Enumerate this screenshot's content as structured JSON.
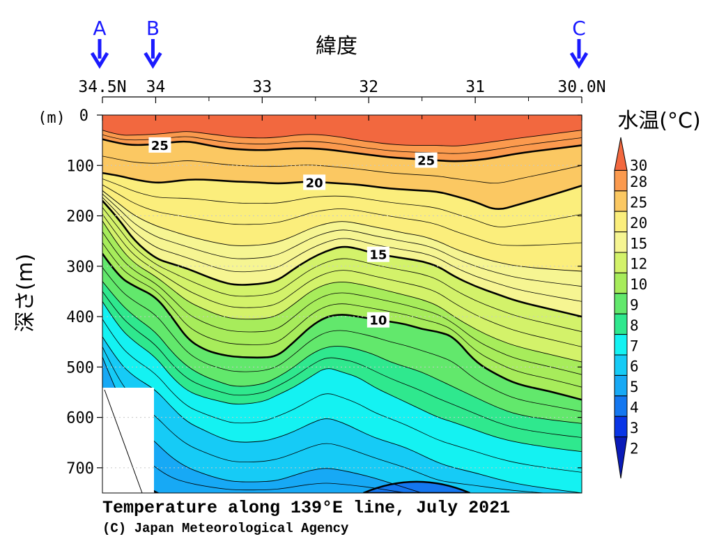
{
  "chart_data": {
    "type": "heatmap",
    "title": "Temperature along 139°E line, July 2021",
    "credit": "(C) Japan Meteorological Agency",
    "x_axis": {
      "label": "緯度",
      "direction": "reversed",
      "range": [
        34.5,
        30.0
      ],
      "ticks": [
        {
          "value": 34.5,
          "label": "34.5N"
        },
        {
          "value": 34,
          "label": "34"
        },
        {
          "value": 33,
          "label": "33"
        },
        {
          "value": 32,
          "label": "32"
        },
        {
          "value": 31,
          "label": "31"
        },
        {
          "value": 30,
          "label": "30.0N"
        }
      ],
      "minor_ticks": [
        33.5,
        32.5,
        31.5,
        30.5
      ]
    },
    "y_axis": {
      "label": "深さ(m)",
      "unit": "(m)",
      "range": [
        0,
        750
      ],
      "inverted": true,
      "ticks": [
        0,
        100,
        200,
        300,
        400,
        500,
        600,
        700
      ]
    },
    "markers": [
      {
        "label": "A",
        "x": 34.5,
        "color": "#1a1aff"
      },
      {
        "label": "B",
        "x": 34.0,
        "color": "#1a1aff"
      },
      {
        "label": "C",
        "x": 30.0,
        "color": "#1a1aff"
      }
    ],
    "colorbar": {
      "title": "水温(°C)",
      "levels": [
        "30",
        "28",
        "25",
        "20",
        "15",
        "12",
        "10",
        "9",
        "8",
        "7",
        "6",
        "5",
        "4",
        "3",
        "2"
      ],
      "colors": [
        "#f2683f",
        "#fb9a4e",
        "#fbc862",
        "#fbee7c",
        "#f6f592",
        "#d3f26a",
        "#a7ec5b",
        "#62e86c",
        "#2fe88e",
        "#14f2f2",
        "#16cbf6",
        "#17a9f5",
        "#1477f0",
        "#0935e6",
        "#0a1bb8"
      ]
    },
    "isotherms": [
      {
        "value": 25,
        "depths": [
          48,
          56,
          60,
          58,
          54,
          52,
          58,
          64,
          68,
          70,
          68,
          66,
          66,
          68,
          72,
          76,
          80,
          84,
          86,
          88,
          90,
          92,
          90,
          84,
          76,
          68,
          60
        ],
        "label_positions": [
          34.0,
          31.5
        ]
      },
      {
        "value": 20,
        "depths": [
          115,
          120,
          128,
          135,
          132,
          128,
          128,
          130,
          132,
          134,
          136,
          134,
          132,
          134,
          136,
          138,
          142,
          146,
          148,
          150,
          152,
          160,
          172,
          190,
          178,
          160,
          140
        ],
        "label_positions": [
          32.5
        ]
      },
      {
        "value": 15,
        "depths": [
          170,
          205,
          250,
          285,
          295,
          305,
          318,
          330,
          338,
          335,
          328,
          305,
          285,
          270,
          260,
          265,
          275,
          280,
          285,
          290,
          300,
          320,
          340,
          355,
          370,
          385,
          400
        ],
        "label_positions": [
          32.0
        ]
      },
      {
        "value": 10,
        "depths": [
          275,
          320,
          340,
          360,
          400,
          445,
          465,
          475,
          480,
          482,
          478,
          450,
          420,
          400,
          395,
          400,
          405,
          410,
          415,
          425,
          430,
          440,
          490,
          515,
          535,
          548,
          565
        ],
        "label_positions": [
          32.0
        ]
      },
      {
        "value": 5,
        "depths": [
          690,
          700,
          720,
          750,
          760,
          760,
          760,
          760,
          760,
          760,
          760,
          760,
          760,
          760,
          760,
          760,
          760,
          760,
          760,
          760,
          760,
          760,
          760,
          760,
          760,
          760,
          760
        ],
        "label_positions": []
      }
    ],
    "depth_bands": [
      {
        "color": "#f2683f",
        "top": [
          0,
          0,
          0,
          0,
          0,
          0,
          0,
          0,
          0,
          0,
          0,
          0,
          0,
          0,
          0,
          0,
          0,
          0,
          0,
          0,
          0,
          0,
          0,
          0,
          0,
          0,
          0
        ]
      },
      {
        "color": "#fb9a4e",
        "top": [
          30,
          40,
          40,
          38,
          35,
          32,
          36,
          40,
          44,
          46,
          44,
          40,
          38,
          40,
          44,
          50,
          54,
          58,
          60,
          60,
          60,
          62,
          58,
          52,
          46,
          38,
          30
        ]
      },
      {
        "color": "#fbc862",
        "top": [
          48,
          56,
          60,
          58,
          54,
          52,
          58,
          64,
          68,
          70,
          68,
          66,
          66,
          68,
          72,
          76,
          80,
          84,
          86,
          88,
          90,
          92,
          90,
          84,
          76,
          68,
          60
        ]
      },
      {
        "color": "#fbee7c",
        "top": [
          115,
          120,
          128,
          135,
          132,
          128,
          128,
          130,
          132,
          134,
          136,
          134,
          132,
          134,
          136,
          138,
          142,
          146,
          148,
          150,
          152,
          160,
          172,
          190,
          178,
          160,
          140
        ]
      },
      {
        "color": "#f6f592",
        "top": [
          150,
          175,
          200,
          220,
          230,
          240,
          248,
          255,
          260,
          258,
          252,
          240,
          225,
          215,
          210,
          215,
          222,
          228,
          235,
          240,
          250,
          265,
          280,
          292,
          300,
          306,
          310
        ]
      },
      {
        "color": "#d3f26a",
        "top": [
          170,
          205,
          250,
          285,
          295,
          305,
          318,
          330,
          338,
          335,
          328,
          305,
          285,
          270,
          260,
          265,
          275,
          280,
          285,
          290,
          300,
          320,
          340,
          355,
          370,
          385,
          400
        ]
      },
      {
        "color": "#a7ec5b",
        "top": [
          210,
          260,
          295,
          320,
          345,
          370,
          385,
          398,
          405,
          405,
          398,
          375,
          350,
          335,
          330,
          335,
          342,
          350,
          358,
          366,
          378,
          400,
          425,
          445,
          460,
          475,
          490
        ]
      },
      {
        "color": "#62e86c",
        "top": [
          275,
          320,
          340,
          360,
          400,
          445,
          465,
          475,
          480,
          482,
          478,
          450,
          420,
          400,
          395,
          400,
          405,
          410,
          415,
          425,
          430,
          440,
          490,
          515,
          535,
          548,
          565
        ]
      },
      {
        "color": "#2fe88e",
        "top": [
          330,
          370,
          400,
          430,
          470,
          500,
          518,
          530,
          540,
          535,
          520,
          500,
          475,
          460,
          458,
          465,
          475,
          490,
          500,
          510,
          525,
          540,
          560,
          580,
          595,
          605,
          612
        ]
      },
      {
        "color": "#14f2f2",
        "top": [
          370,
          420,
          450,
          480,
          520,
          548,
          560,
          568,
          575,
          570,
          555,
          540,
          520,
          500,
          510,
          520,
          540,
          555,
          570,
          585,
          600,
          610,
          625,
          640,
          650,
          660,
          668
        ]
      },
      {
        "color": "#16cbf6",
        "top": [
          440,
          490,
          520,
          545,
          580,
          610,
          625,
          640,
          650,
          648,
          640,
          628,
          612,
          600,
          610,
          625,
          640,
          650,
          660,
          675,
          690,
          700,
          710,
          722,
          732,
          742,
          750
        ]
      },
      {
        "color": "#17a9f5",
        "top": [
          480,
          560,
          610,
          650,
          680,
          700,
          712,
          722,
          728,
          728,
          725,
          715,
          705,
          700,
          705,
          712,
          720,
          730,
          740,
          750,
          760,
          760,
          760,
          760,
          760,
          760,
          760
        ]
      },
      {
        "color": "#1477f0",
        "top": [
          690,
          700,
          720,
          750,
          760,
          760,
          760,
          760,
          760,
          760,
          760,
          760,
          760,
          760,
          760,
          760,
          760,
          760,
          760,
          760,
          760,
          760,
          760,
          760,
          760,
          760,
          760
        ]
      }
    ],
    "deep_pocket": {
      "color": "#1477f0",
      "x_range": [
        32.05,
        31.05
      ],
      "min_depth": 733
    },
    "sample_latitudes": [
      34.5,
      34.35,
      34.2,
      34.0,
      33.85,
      33.7,
      33.55,
      33.4,
      33.25,
      33.0,
      32.85,
      32.7,
      32.55,
      32.4,
      32.25,
      32.1,
      31.95,
      31.8,
      31.65,
      31.5,
      31.35,
      31.2,
      31.0,
      30.8,
      30.6,
      30.3,
      30.0
    ]
  }
}
